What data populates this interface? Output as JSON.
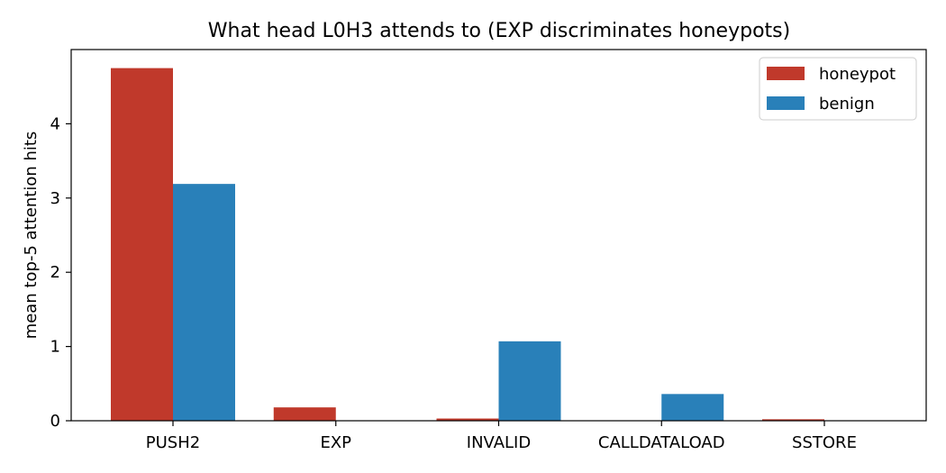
{
  "chart_data": {
    "type": "bar",
    "title": "What head L0H3 attends to (EXP discriminates honeypots)",
    "xlabel": "",
    "ylabel": "mean top-5 attention hits",
    "categories": [
      "PUSH2",
      "EXP",
      "INVALID",
      "CALLDATALOAD",
      "SSTORE"
    ],
    "series": [
      {
        "name": "honeypot",
        "color": "#c0392b",
        "values": [
          4.75,
          0.18,
          0.03,
          0.0,
          0.02
        ]
      },
      {
        "name": "benign",
        "color": "#2980b9",
        "values": [
          3.19,
          0.0,
          1.07,
          0.36,
          0.0
        ]
      }
    ],
    "ylim": [
      0,
      5.0
    ],
    "yticks": [
      0,
      1,
      2,
      3,
      4
    ],
    "grid": false,
    "legend_position": "top-right"
  }
}
